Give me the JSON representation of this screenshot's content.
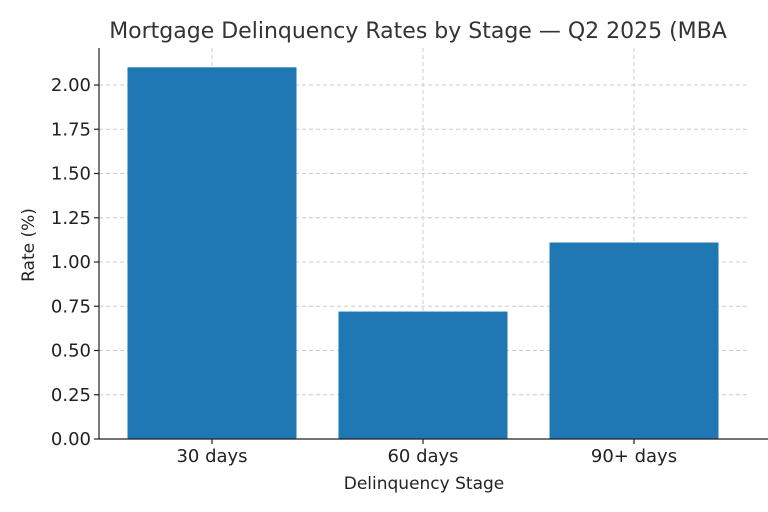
{
  "chart_data": {
    "type": "bar",
    "title": "Mortgage Delinquency Rates by Stage — Q2 2025 (MBA",
    "xlabel": "Delinquency Stage",
    "ylabel": "Rate (%)",
    "categories": [
      "30 days",
      "60 days",
      "90+ days"
    ],
    "values": [
      2.1,
      0.72,
      1.11
    ],
    "ylim": [
      0,
      2.2
    ],
    "yticks": [
      "0.00",
      "0.25",
      "0.50",
      "0.75",
      "1.00",
      "1.25",
      "1.50",
      "1.75",
      "2.00"
    ],
    "grid": true,
    "bar_color": "#1f77b4"
  }
}
